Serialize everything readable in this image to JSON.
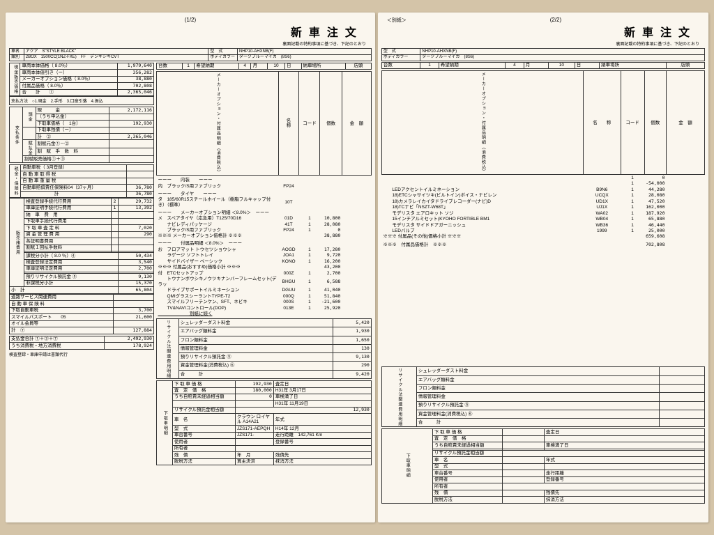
{
  "p1": {
    "pgnum": "(1/2)",
    "title": "新車注文",
    "subtitle": "裏面記載の特約事項に基づき、下記のとおり",
    "car_line1_lbl": "車名",
    "car_line1": "アクア　S\"STYLE BLACK\"",
    "car_line1b_lbl": "型　式",
    "car_line1b": "NHP10-AHXNB(F)",
    "car_line2_lbl": "類別",
    "car_line2": "2BOX　1500CC(1NZ-FXE)　FF　デンキシキCVT",
    "car_line2b_lbl": "ボディカラー",
    "car_line2b": "ダークブルーマイカ",
    "car_line2c": "(8S6)",
    "unit_row_a": "台数",
    "unit_row_b": "1",
    "unit_row_c": "希望納期",
    "unit_row_d": "4",
    "unit_row_e": "月",
    "unit_row_f": "10",
    "unit_row_g": "日",
    "unit_row_h": "納車場所",
    "unit_row_i": "店頭",
    "price_side": "現金販売価格",
    "prices": [
      {
        "l": "車両本体価格（ 8.0％）",
        "v": "1,979,640"
      },
      {
        "l": "車両本体値引き（ー）",
        "v": "356,282"
      },
      {
        "l": "メーカーオプション価格（ 8.0％）",
        "v": "38,880"
      },
      {
        "l": "付属品価格（ 8.0％）",
        "v": "702,808"
      },
      {
        "l": "合　　計　　①",
        "v": "2,365,046"
      }
    ],
    "pay_method": "支払方法　○1.現金　2.手形　3.口座引落　4.振込",
    "pay_side": "支払条件",
    "pay_rows": [
      {
        "l": "現　　　金",
        "v": "2,172,116"
      },
      {
        "l": "（うち申込金）",
        "v": ""
      },
      {
        "l": "下取車価格（　1台）",
        "v": "192,930"
      },
      {
        "l": "下取車残債（ー）",
        "v": ""
      },
      {
        "l": "計　②",
        "v": "2,365,046"
      },
      {
        "l": "割賦元金①－②",
        "v": ""
      },
      {
        "l": "割　賦　手　数　料",
        "v": ""
      }
    ],
    "inst_lbl": "割賦販売価格①＋③",
    "tax_side": "税金・保険料",
    "tax_sub": "消費税込",
    "tax_rows": [
      {
        "l": "自動車税（ 3月登録）",
        "v": ""
      },
      {
        "l": "自 動 車 取 得 税",
        "v": ""
      },
      {
        "l": "自 動 車 重 量 税",
        "v": ""
      },
      {
        "l": "自動車賠償責任保険料04（37ヶ月）",
        "v": "36,780"
      },
      {
        "l": "　　　　　　　計",
        "v": "36,780"
      }
    ],
    "fee_rows": [
      {
        "l": "検査登録手続代行費用",
        "n": "2",
        "v": "29,732"
      },
      {
        "l": "車庫証明手続代行費用",
        "n": "1",
        "v": "13,392"
      },
      {
        "l": "納　車　費　用",
        "v": ""
      },
      {
        "l": "下取車手続代行費用",
        "v": ""
      },
      {
        "l": "下 取 車 査 定 料",
        "v": "7,020"
      },
      {
        "l": "資 金 管 理 費 用",
        "v": "290"
      },
      {
        "l": "各証明書費用",
        "v": ""
      },
      {
        "l": "割賦１回払手数料",
        "v": ""
      }
    ],
    "tax_split": "課税分小計（ 8.0 ％）④",
    "tax_split_v": "50,434",
    "legal_side": "預法り定金費等用",
    "legal_rows": [
      {
        "l": "検査登録法定費用",
        "v": "3,540"
      },
      {
        "l": "車庫証明法定費用",
        "v": "2,700"
      },
      {
        "l": "",
        "v": ""
      },
      {
        "l": "預りリサイクル預託金 ⑤",
        "v": "9,130"
      }
    ],
    "nontax": "非課税分小計",
    "nontax_v": "15,370",
    "subtotal": "小　計",
    "subtotal_v": "65,804",
    "extra_rows": [
      {
        "l": "道路サービス関連費用",
        "v": ""
      },
      {
        "l": "自 動 車 保 険 料",
        "v": ""
      },
      {
        "l": "下取自動車税",
        "v": "3,700"
      },
      {
        "l": "スマイルパスポート　　05",
        "v": "21,600"
      },
      {
        "l": "オイル会員等",
        "v": ""
      }
    ],
    "extra_total": "計　⑦",
    "extra_total_v": "127,884",
    "grand1": "支払金合計 ①＋③＋⑦",
    "grand1_v": "2,492,930",
    "grand2": "うち消費税・地方消費税",
    "grand2_v": "178,924",
    "footnote": "検査登録・車庫申請は書類代行",
    "mid_hdr": [
      "名　　称",
      "コード",
      "個数",
      "金　額"
    ],
    "int_side": "メーカーオプション・付属品明細（消費税込）",
    "interior": [
      {
        "t": "ーーー　　内装　　ーーー"
      },
      {
        "l": "内　ブラック/S用ファブリック",
        "c": "FP24"
      },
      {
        "t": "ーーー　　タイヤ　　ーーー"
      },
      {
        "l": "タ　185/60R15スチールホイール（樹脂フルキャップ付き）（標準）",
        "c": "10T"
      },
      {
        "t": "ーーー　　メーカーオプション明細 ＜8.0%＞　ーーー"
      },
      {
        "l": "メ　スペアタイヤ（応急用）T125/70D16",
        "c": "01D",
        "n": "1",
        "v": "10,800"
      },
      {
        "l": "　　ナビレディパッケージ",
        "c": "41T",
        "n": "1",
        "v": "28,080"
      },
      {
        "l": "　　ブラック/S用ファブリック",
        "c": "FP24",
        "n": "1",
        "v": "0"
      },
      {
        "l": "※※※ メーカーオプション価格計 ※※※",
        "v": "38,880"
      },
      {
        "t": "ーーー　　付属品明細 ＜8.0%＞　ーーー"
      },
      {
        "l": "お　フロアマット トウセツショウシャ",
        "c": "AOGD",
        "n": "1",
        "v": "17,280"
      },
      {
        "l": "　　ラゲージ ソフトトレイ",
        "c": "JOA1",
        "n": "1",
        "v": "9,720"
      },
      {
        "l": "　　サイドバイザー ベーシック",
        "c": "KONO",
        "n": "1",
        "v": "16,200"
      },
      {
        "l": "※※※ 付属品(おすすめ)価格小計 ※※※",
        "v": "43,200"
      },
      {
        "l": "付　ETCセットアップ",
        "c": "000Z",
        "n": "1",
        "v": "2,700"
      },
      {
        "l": "　　トウナンボウシキノウツキナンバーフレームセット(デラッ",
        "c": "BHGU",
        "n": "1",
        "v": "6,588"
      },
      {
        "l": "　　ドライブサポートイルミネーション",
        "c": "DGUU",
        "n": "1",
        "v": "41,040"
      },
      {
        "l": "　　QMIグラスシーラントTYPE-T2",
        "c": "000Q",
        "n": "1",
        "v": "51,840"
      },
      {
        "l": "　　スマイルフリーテンケン、SFT、ネビキ",
        "c": "000S",
        "n": "1",
        "v": "-21,600"
      },
      {
        "l": "　　TV&NAVIコントロール(DOP)",
        "c": "013E",
        "n": "1",
        "v": "25,920"
      },
      {
        "l": "　　　　　　　別紙に続く",
        "u": true
      }
    ],
    "recycle_side": "リサイクル法関連費用明細",
    "recycle": [
      {
        "l": "シュレッダーダスト料金",
        "v": "5,420"
      },
      {
        "l": "エアバッグ類料金",
        "v": "1,930"
      },
      {
        "l": "フロン類料金",
        "v": "1,650"
      },
      {
        "l": "情報管理料金",
        "v": "130"
      },
      {
        "l": "預りリサイクル預託金 ⑤",
        "v": "9,130"
      },
      {
        "l": "資金管理料金(消費税込) ⑥",
        "v": "290"
      },
      {
        "l": "合　　　計",
        "v": "9,420"
      }
    ],
    "trade_side": "下取車明細",
    "trade": [
      {
        "l": "下 取 車 価 格",
        "v": "192,930",
        "r": "査定日"
      },
      {
        "l": "査　定　価　格",
        "v": "180,000",
        "r": "H31年 3月17日"
      },
      {
        "l": "うち自賠責未経過相当額",
        "v": "0",
        "r": "車検満了日"
      },
      {
        "l": "",
        "v": "",
        "r": "H31年 11月19日"
      },
      {
        "l": "リサイクル預託金相当額",
        "v": "12,930"
      },
      {
        "l": "車　名",
        "v": "クラウン ロイヤル A14A21",
        "r": "年式"
      },
      {
        "l": "型　式",
        "v": "JZS171-AEPQH",
        "r": "H14年 12月"
      },
      {
        "l": "車台番号",
        "v": "JZS171-",
        "r": "走行距離　142,761 Km"
      },
      {
        "l": "使用者",
        "v": "",
        "r": "登録番号"
      },
      {
        "l": "所有者",
        "v": ""
      },
      {
        "l": "残　債",
        "v": "年　月",
        "r": "残債先"
      },
      {
        "l": "脱税方法",
        "v": "買主決済",
        "r": "抹消方法"
      }
    ]
  },
  "p2": {
    "pgnum": "(2/2)",
    "sublabel": "＜別紙＞",
    "title": "新車注文",
    "subtitle": "裏面記載の特約事項に基づき、下記のとおり",
    "car_line1b_lbl": "型　式",
    "car_line1b": "NHP10-AHXNB(F)",
    "car_line2b_lbl": "ボディカラー",
    "car_line2b": "ダークブルーマイカ",
    "car_line2c": "(8S6)",
    "unit_row_a": "台数",
    "unit_row_b": "1",
    "unit_row_c": "希望納期",
    "unit_row_d": "4",
    "unit_row_e": "月",
    "unit_row_f": "10",
    "unit_row_g": "日",
    "unit_row_h": "納車場所",
    "unit_row_i": "店頭",
    "mid_hdr": [
      "名　　称",
      "コード",
      "個数",
      "金　額"
    ],
    "int_side": "メーカーオプション・付属品明細（消費税込）",
    "items": [
      {
        "l": "",
        "c": "",
        "n": "1",
        "v": "0"
      },
      {
        "l": "",
        "c": "",
        "n": "1",
        "v": "-54,000"
      },
      {
        "l": "　　LEDアクセントイルミネーション",
        "c": "B9N6",
        "n": "1",
        "v": "44,280"
      },
      {
        "l": "　　18)ETCシャサイツキ(ビルトイン)ボイス・ナビレン",
        "c": "UCQX",
        "n": "1",
        "v": "28,080"
      },
      {
        "l": "　　18)カメラレイカイタドライブレコーダー(ナビ)D",
        "c": "UD1X",
        "n": "1",
        "v": "47,520"
      },
      {
        "l": "　　18)TCナビ「NSZT-W68T」",
        "c": "UJ1X",
        "n": "1",
        "v": "162,000"
      },
      {
        "l": "　　モデリスタ エアロキット ソジ",
        "c": "WA02",
        "n": "1",
        "v": "187,920"
      },
      {
        "l": "　　15インチアルミセット(KYOHO FORTIBLE BM1",
        "c": "WB04",
        "n": "1",
        "v": "65,880"
      },
      {
        "l": "　　モデリスタ サイドドアガーニッシュ",
        "c": "WB36",
        "n": "1",
        "v": "46,440"
      },
      {
        "l": "　　LEDバルブ",
        "c": "1999",
        "n": "1",
        "v": "25,000"
      },
      {
        "l": "※※※ 付属品(その他)価格小計 ※※※",
        "v": "659,608"
      },
      {
        "t": " "
      },
      {
        "l": "※※※　付属品価格計　※※※",
        "v": "702,808"
      }
    ],
    "recycle_side": "リサイクル法関連費用明細",
    "recycle": [
      {
        "l": "シュレッダーダスト料金"
      },
      {
        "l": "エアバッグ類料金"
      },
      {
        "l": "フロン類料金"
      },
      {
        "l": "情報管理料金"
      },
      {
        "l": "預りリサイクル預託金 ⑤"
      },
      {
        "l": "資金管理料金(消費税込) ⑥"
      },
      {
        "l": "合　　　計"
      }
    ],
    "trade_side": "下取車明細",
    "trade": [
      {
        "l": "下 取 車 価 格",
        "r": "査定日"
      },
      {
        "l": "査　定　価　格",
        "r": ""
      },
      {
        "l": "うち自賠責未経過相当額",
        "r": "車検満了日"
      },
      {
        "l": "",
        "r": ""
      },
      {
        "l": "リサイクル預託金相当額"
      },
      {
        "l": "車　名",
        "r": "年式"
      },
      {
        "l": "型　式",
        "r": ""
      },
      {
        "l": "車台番号",
        "r": "走行距離"
      },
      {
        "l": "使用者",
        "r": "登録番号"
      },
      {
        "l": "所有者"
      },
      {
        "l": "残　債",
        "r": "残債先"
      },
      {
        "l": "脱税方法",
        "r": "抹消方法"
      }
    ]
  }
}
